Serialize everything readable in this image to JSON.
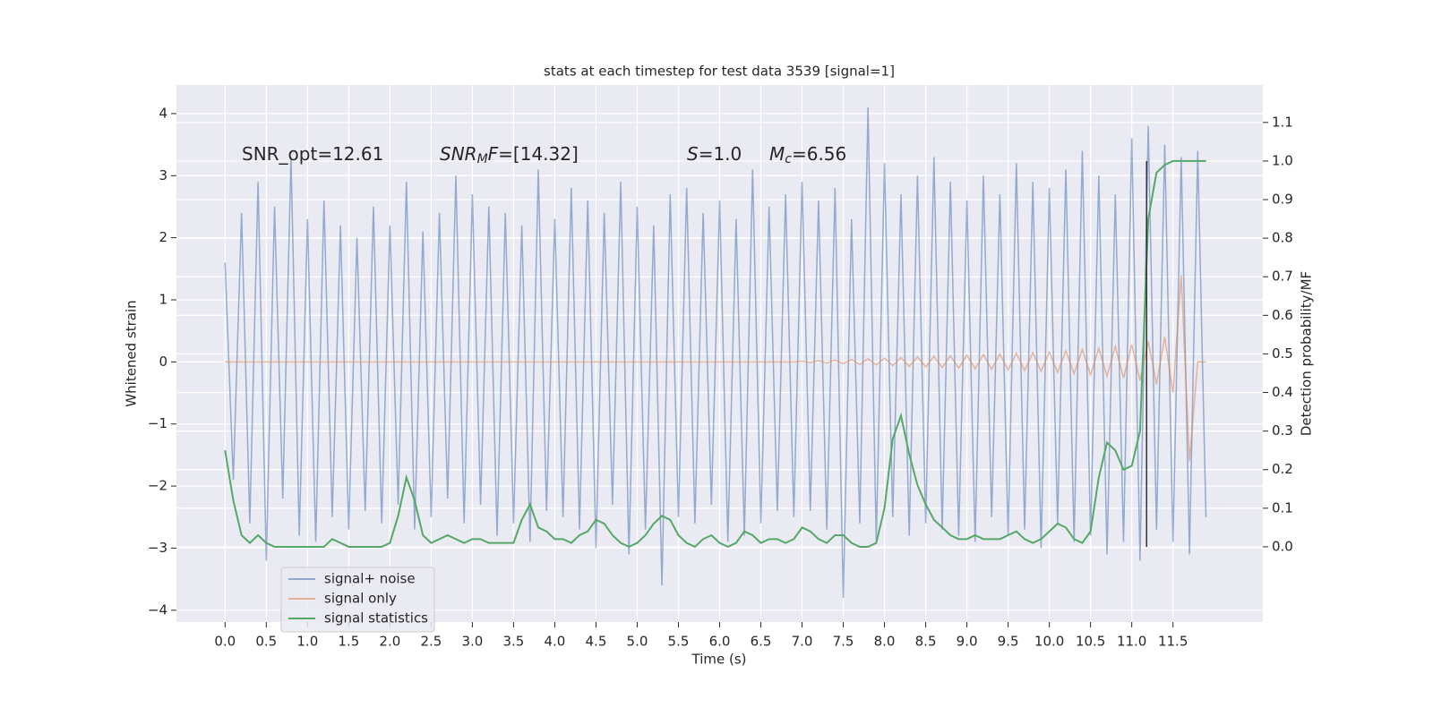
{
  "chart_data": {
    "type": "line",
    "title": "stats at each timestep for test data 3539 [signal=1]",
    "xlabel": "Time (s)",
    "ylabel": "Whitened strain",
    "y2label": "Detection probability/MF",
    "x": [
      0,
      0.1,
      0.2,
      0.3,
      0.4,
      0.5,
      0.6,
      0.7,
      0.8,
      0.9,
      1,
      1.1,
      1.2,
      1.3,
      1.4,
      1.5,
      1.6,
      1.7,
      1.8,
      1.9,
      2,
      2.1,
      2.2,
      2.3,
      2.4,
      2.5,
      2.6,
      2.7,
      2.8,
      2.9,
      3,
      3.1,
      3.2,
      3.3,
      3.4,
      3.5,
      3.6,
      3.7,
      3.8,
      3.9,
      4,
      4.1,
      4.2,
      4.3,
      4.4,
      4.5,
      4.6,
      4.7,
      4.8,
      4.9,
      5,
      5.1,
      5.2,
      5.3,
      5.4,
      5.5,
      5.6,
      5.7,
      5.8,
      5.9,
      6,
      6.1,
      6.2,
      6.3,
      6.4,
      6.5,
      6.6,
      6.7,
      6.8,
      6.9,
      7,
      7.1,
      7.2,
      7.3,
      7.4,
      7.5,
      7.6,
      7.7,
      7.8,
      7.9,
      8,
      8.1,
      8.2,
      8.3,
      8.4,
      8.5,
      8.6,
      8.7,
      8.8,
      8.9,
      9,
      9.1,
      9.2,
      9.3,
      9.4,
      9.5,
      9.6,
      9.7,
      9.8,
      9.9,
      10,
      10.1,
      10.2,
      10.3,
      10.4,
      10.5,
      10.6,
      10.7,
      10.8,
      10.9,
      11,
      11.1,
      11.2,
      11.3,
      11.4,
      11.5,
      11.6,
      11.7,
      11.8,
      11.9
    ],
    "xlim": [
      -0.59,
      12.59
    ],
    "xticks": [
      {
        "value": 0,
        "label": "0.0"
      },
      0.5,
      {
        "value": 1,
        "label": "1.0"
      },
      1.5,
      {
        "value": 2,
        "label": "2.0"
      },
      2.5,
      {
        "value": 3,
        "label": "3.0"
      },
      3.5,
      {
        "value": 4,
        "label": "4.0"
      },
      4.5,
      {
        "value": 5,
        "label": "5.0"
      },
      5.5,
      {
        "value": 6,
        "label": "6.0"
      },
      6.5,
      {
        "value": 7,
        "label": "7.0"
      },
      7.5,
      {
        "value": 8,
        "label": "8.0"
      },
      8.5,
      {
        "value": 9,
        "label": "9.0"
      },
      9.5,
      {
        "value": 10,
        "label": "10.0"
      },
      10.5,
      {
        "value": 11,
        "label": "11.0"
      },
      11.5
    ],
    "ylim": [
      -4.19,
      4.46
    ],
    "yticks": [
      {
        "value": -4,
        "label": "−4"
      },
      {
        "value": -3,
        "label": "−3"
      },
      {
        "value": -2,
        "label": "−2"
      },
      {
        "value": -1,
        "label": "−1"
      },
      0,
      1,
      2,
      3,
      4
    ],
    "y2lim": [
      -0.195,
      1.197
    ],
    "y2ticks": [
      {
        "value": 0,
        "label": "0.0"
      },
      0.1,
      0.2,
      0.3,
      0.4,
      0.5,
      0.6,
      0.7,
      0.8,
      0.9,
      {
        "value": 1,
        "label": "1.0"
      },
      1.1
    ],
    "grid": true,
    "legend": "lower left",
    "series": [
      {
        "name": "signal+ noise",
        "color": "#4c72b0",
        "values": [
          1.6,
          -1.9,
          2.4,
          -2.6,
          2.9,
          -3.2,
          2.5,
          -2.2,
          3.3,
          -2.8,
          2.3,
          -2.9,
          2.6,
          -2.5,
          2.2,
          -2.7,
          2.0,
          -2.4,
          2.5,
          -2.6,
          2.2,
          -2.3,
          2.9,
          -2.7,
          2.1,
          -2.5,
          2.4,
          -2.2,
          3.0,
          -2.6,
          2.7,
          -2.3,
          2.5,
          -2.8,
          2.4,
          -2.6,
          2.2,
          -2.9,
          3.1,
          -2.4,
          2.3,
          -2.5,
          2.8,
          -2.7,
          2.6,
          -3.0,
          2.4,
          -2.3,
          2.9,
          -3.1,
          2.5,
          -2.7,
          2.2,
          -3.6,
          2.7,
          -2.5,
          2.8,
          -2.6,
          2.4,
          -2.3,
          2.6,
          -2.9,
          2.3,
          -2.8,
          3.1,
          -2.6,
          2.5,
          -2.4,
          2.7,
          -2.5,
          2.9,
          -2.4,
          2.6,
          -2.7,
          2.8,
          -3.8,
          2.3,
          -2.6,
          4.1,
          -2.9,
          3.2,
          -2.5,
          2.7,
          -2.8,
          3.0,
          -2.6,
          3.3,
          -2.7,
          2.9,
          -2.8,
          2.6,
          -2.9,
          3.0,
          -2.5,
          2.7,
          -2.8,
          3.2,
          -2.7,
          2.9,
          -3.0,
          2.8,
          -2.6,
          3.1,
          -2.9,
          3.4,
          -2.8,
          3.0,
          -3.1,
          2.7,
          -2.9,
          3.6,
          -3.2,
          3.8,
          -2.7,
          3.5,
          -2.9,
          3.3,
          -3.1,
          3.4,
          -2.5
        ]
      },
      {
        "name": "signal only",
        "color": "#dd8452",
        "values": [
          0,
          0,
          0,
          0,
          0,
          0,
          0,
          0,
          0,
          0,
          0,
          0,
          0,
          0,
          0,
          0,
          0,
          0,
          0,
          0,
          0,
          0,
          0,
          0,
          0,
          0,
          0,
          0,
          0,
          0,
          0,
          0,
          0,
          0,
          0,
          0,
          0,
          0,
          0,
          0,
          0,
          0,
          0,
          0,
          0,
          0,
          0,
          0,
          0,
          0,
          0,
          0,
          0,
          0,
          0,
          0,
          0,
          0,
          0,
          0,
          0,
          0,
          0,
          0,
          0,
          0,
          0,
          0,
          0,
          0,
          0.01,
          -0.01,
          0.02,
          -0.02,
          0.03,
          -0.03,
          0.04,
          -0.04,
          0.05,
          -0.05,
          0.06,
          -0.06,
          0.07,
          -0.07,
          0.08,
          -0.08,
          0.09,
          -0.09,
          0.1,
          -0.1,
          0.11,
          -0.11,
          0.12,
          -0.12,
          0.13,
          -0.13,
          0.14,
          -0.14,
          0.15,
          -0.15,
          0.16,
          -0.17,
          0.18,
          -0.19,
          0.2,
          -0.21,
          0.22,
          -0.23,
          0.25,
          -0.26,
          0.28,
          -0.3,
          0.33,
          -0.36,
          0.4,
          -0.5,
          1.4,
          -1.6,
          0,
          0
        ]
      },
      {
        "name": "signal statistics",
        "color": "#55a868",
        "axis": "y2",
        "values": [
          0.25,
          0.12,
          0.03,
          0.01,
          0.03,
          0.01,
          0,
          0,
          0,
          0,
          0,
          0,
          0,
          0.02,
          0.01,
          0,
          0,
          0,
          0,
          0,
          0.01,
          0.08,
          0.18,
          0.12,
          0.03,
          0.01,
          0.02,
          0.03,
          0.02,
          0.01,
          0.02,
          0.02,
          0.01,
          0.01,
          0.01,
          0.01,
          0.07,
          0.11,
          0.05,
          0.04,
          0.02,
          0.02,
          0.01,
          0.03,
          0.04,
          0.07,
          0.06,
          0.03,
          0.01,
          0,
          0.01,
          0.03,
          0.06,
          0.08,
          0.07,
          0.03,
          0.01,
          0,
          0.02,
          0.03,
          0.01,
          0,
          0.01,
          0.04,
          0.03,
          0.01,
          0.02,
          0.02,
          0.01,
          0.02,
          0.05,
          0.04,
          0.02,
          0.01,
          0.03,
          0.03,
          0.01,
          0,
          0,
          0.01,
          0.1,
          0.28,
          0.34,
          0.24,
          0.16,
          0.11,
          0.07,
          0.05,
          0.03,
          0.02,
          0.02,
          0.03,
          0.02,
          0.02,
          0.02,
          0.03,
          0.04,
          0.02,
          0.01,
          0.02,
          0.04,
          0.06,
          0.05,
          0.02,
          0.01,
          0.04,
          0.18,
          0.27,
          0.25,
          0.2,
          0.21,
          0.3,
          0.85,
          0.97,
          0.99,
          1,
          1,
          1,
          1,
          1
        ]
      }
    ],
    "vline": {
      "x": 11.18,
      "y2": [
        0,
        1
      ],
      "color": "#333333"
    },
    "annotations": [
      {
        "segments": [
          {
            "text": "SNR_opt=12.61",
            "style": "normal"
          }
        ]
      },
      {
        "segments": [
          {
            "text": "SNR",
            "style": "italic"
          },
          {
            "text": "M",
            "style": "italic-sub"
          },
          {
            "text": "F",
            "style": "italic"
          },
          {
            "text": "=[14.32]",
            "style": "normal"
          }
        ]
      },
      {
        "segments": [
          {
            "text": "S",
            "style": "italic"
          },
          {
            "text": "=1.0",
            "style": "normal"
          }
        ]
      },
      {
        "segments": [
          {
            "text": "M",
            "style": "italic"
          },
          {
            "text": "c",
            "style": "italic-sub"
          },
          {
            "text": "=6.56",
            "style": "normal"
          }
        ]
      }
    ]
  }
}
